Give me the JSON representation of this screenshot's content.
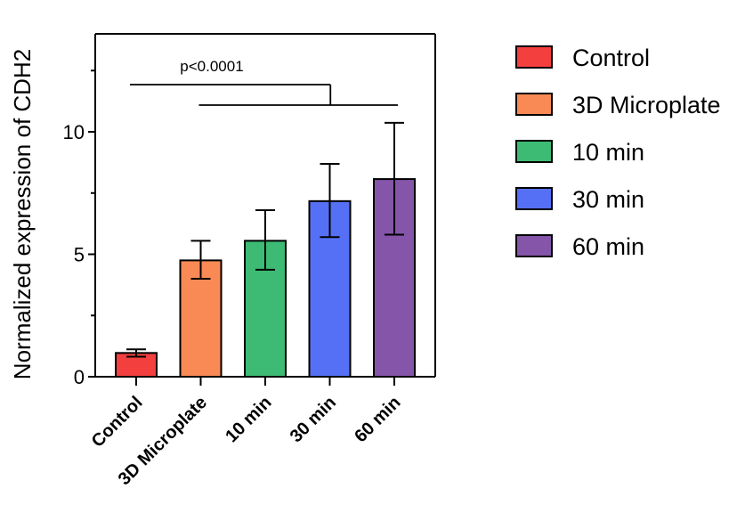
{
  "chart_data": {
    "type": "bar",
    "title": "",
    "xlabel": "",
    "ylabel": "Normalized expression of CDH2",
    "ylim": [
      0,
      14
    ],
    "yticks": [
      0,
      5,
      10
    ],
    "grid": false,
    "legend_position": "right",
    "categories": [
      "Control",
      "3D Microplate",
      "10 min",
      "30 min",
      "60 min"
    ],
    "values": [
      0.97,
      4.75,
      5.55,
      7.17,
      8.07
    ],
    "errors_upper": [
      0.15,
      0.8,
      1.25,
      1.52,
      2.3
    ],
    "errors_lower": [
      0.15,
      0.75,
      1.18,
      1.47,
      2.27
    ],
    "colors": [
      "#f43f3f",
      "#fa8a55",
      "#3dba73",
      "#5570f5",
      "#8555a9"
    ],
    "legend": [
      "Control",
      "3D Microplate",
      "10 min",
      "30 min",
      "60 min"
    ],
    "annotation": {
      "text": "p<0.0001",
      "compare_left": "Control",
      "compare_right": [
        "3D Microplate",
        "10 min",
        "30 min",
        "60 min"
      ]
    }
  }
}
